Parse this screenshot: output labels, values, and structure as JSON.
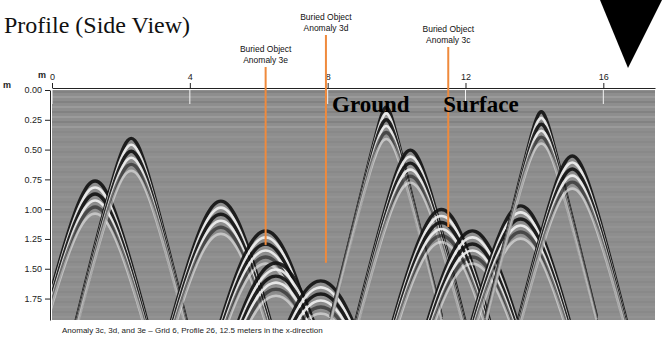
{
  "chart_data": {
    "type": "radargram",
    "title": "Profile (Side View)",
    "x_label": "m",
    "y_label": "m",
    "xlim": [
      0,
      17.5
    ],
    "ylim": [
      0,
      1.93
    ],
    "xticks": [
      0,
      4,
      8,
      12,
      16
    ],
    "yticks": [
      {
        "value": 0,
        "label": "0.00"
      },
      {
        "value": 0.25,
        "label": "0.25"
      },
      {
        "value": 0.5,
        "label": "0.50"
      },
      {
        "value": 0.75,
        "label": "0.75"
      },
      {
        "value": 1,
        "label": "1.00"
      },
      {
        "value": 1.25,
        "label": "1.25"
      },
      {
        "value": 1.5,
        "label": "1.50"
      },
      {
        "value": 1.75,
        "label": "1.75"
      }
    ],
    "surface_label": "Ground Surface",
    "annotations": [
      {
        "text": [
          "Buried Object",
          "Anomaly 3e"
        ],
        "x": 6.2,
        "depth": 1.3
      },
      {
        "text": [
          "Buried Object",
          "Anomaly 3d"
        ],
        "x": 7.95,
        "depth": 1.45
      },
      {
        "text": [
          "Buried Object",
          "Anomaly 3c"
        ],
        "x": 11.5,
        "depth": 1.15
      }
    ],
    "reflections": [
      {
        "x": 1.25,
        "depth": 0.76
      },
      {
        "x": 2.3,
        "depth": 0.4
      },
      {
        "x": 4.9,
        "depth": 0.93
      },
      {
        "x": 6.2,
        "depth": 1.18
      },
      {
        "x": 6.5,
        "depth": 1.45
      },
      {
        "x": 7.8,
        "depth": 1.6
      },
      {
        "x": 9.7,
        "depth": 0.13
      },
      {
        "x": 10.4,
        "depth": 0.5
      },
      {
        "x": 11.3,
        "depth": 1.0
      },
      {
        "x": 12.2,
        "depth": 1.18
      },
      {
        "x": 13.6,
        "depth": 0.97
      },
      {
        "x": 14.2,
        "depth": 0.17
      },
      {
        "x": 15.1,
        "depth": 0.55
      }
    ],
    "caption": "Anomaly 3c, 3d, and 3e – Grid 6, Profile 26, 12.5 meters in the x-direction"
  }
}
